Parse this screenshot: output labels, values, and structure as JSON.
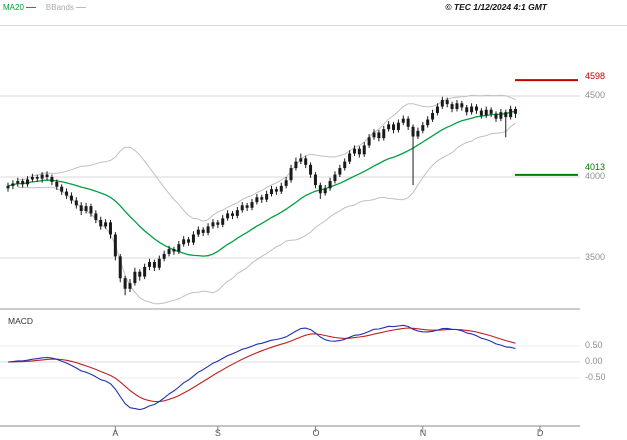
{
  "header": {
    "legend_ma": "MA20",
    "legend_bb": "BBands",
    "copyright": "© TEC 1/12/2024 4:1 GMT"
  },
  "colors": {
    "candle": "#1a1a1a",
    "ma20": "#00a040",
    "bbands": "#c0c0c0",
    "macd_line": "#2030b0",
    "macd_signal": "#c02020",
    "resistance": "#c00000",
    "support": "#008000",
    "grid": "#d8d8d8",
    "axis": "#888888",
    "tick_label": "#909090"
  },
  "chart_data": {
    "type": "candlestick",
    "title": "",
    "panels": [
      "price",
      "macd"
    ],
    "price_ticks": [
      {
        "label": "4500",
        "value": 4500
      },
      {
        "label": "4000",
        "value": 4000
      },
      {
        "label": "3500",
        "value": 3500
      }
    ],
    "levels": [
      {
        "label": "4598",
        "value": 4598,
        "kind": "resistance"
      },
      {
        "label": "4013",
        "value": 4013,
        "kind": "support"
      }
    ],
    "x_axis": {
      "months": [
        {
          "label": "A",
          "index": 22
        },
        {
          "label": "S",
          "index": 43
        },
        {
          "label": "O",
          "index": 63
        },
        {
          "label": "N",
          "index": 85
        },
        {
          "label": "D",
          "index": 109
        }
      ]
    },
    "overlays": {
      "ma_period": 20,
      "bb_period": 20,
      "bb_mult": 2
    },
    "macd_params": {
      "fast": 12,
      "slow": 26,
      "signal": 9,
      "scale": 100
    },
    "macd_axis": {
      "label": "MACD",
      "ticks": [
        {
          "label": "0.50",
          "value": 0.5
        },
        {
          "label": "0.00",
          "value": 0.0
        },
        {
          "label": "-0.50",
          "value": -0.5
        }
      ]
    },
    "ohlc": [
      [
        3930,
        3965,
        3910,
        3945
      ],
      [
        3945,
        3980,
        3925,
        3960
      ],
      [
        3960,
        3995,
        3940,
        3975
      ],
      [
        3975,
        3990,
        3935,
        3955
      ],
      [
        3955,
        4005,
        3940,
        3985
      ],
      [
        3985,
        4020,
        3970,
        4000
      ],
      [
        4000,
        4015,
        3970,
        3990
      ],
      [
        3990,
        4030,
        3965,
        4015
      ],
      [
        4015,
        4035,
        3980,
        4000
      ],
      [
        4000,
        4015,
        3950,
        3970
      ],
      [
        3970,
        3985,
        3920,
        3940
      ],
      [
        3940,
        3955,
        3890,
        3910
      ],
      [
        3910,
        3930,
        3865,
        3885
      ],
      [
        3885,
        3905,
        3835,
        3855
      ],
      [
        3855,
        3875,
        3805,
        3825
      ],
      [
        3825,
        3845,
        3765,
        3790
      ],
      [
        3790,
        3840,
        3775,
        3820
      ],
      [
        3820,
        3835,
        3755,
        3775
      ],
      [
        3775,
        3795,
        3715,
        3735
      ],
      [
        3735,
        3755,
        3675,
        3695
      ],
      [
        3695,
        3740,
        3680,
        3720
      ],
      [
        3720,
        3735,
        3620,
        3645
      ],
      [
        3645,
        3660,
        3485,
        3510
      ],
      [
        3510,
        3525,
        3350,
        3375
      ],
      [
        3375,
        3390,
        3270,
        3310
      ],
      [
        3310,
        3370,
        3290,
        3345
      ],
      [
        3345,
        3440,
        3330,
        3415
      ],
      [
        3415,
        3430,
        3360,
        3385
      ],
      [
        3385,
        3465,
        3370,
        3445
      ],
      [
        3445,
        3495,
        3425,
        3475
      ],
      [
        3475,
        3490,
        3420,
        3440
      ],
      [
        3440,
        3515,
        3425,
        3495
      ],
      [
        3495,
        3545,
        3480,
        3525
      ],
      [
        3525,
        3575,
        3510,
        3555
      ],
      [
        3555,
        3570,
        3520,
        3540
      ],
      [
        3540,
        3605,
        3525,
        3585
      ],
      [
        3585,
        3635,
        3570,
        3615
      ],
      [
        3615,
        3630,
        3575,
        3595
      ],
      [
        3595,
        3665,
        3580,
        3645
      ],
      [
        3645,
        3695,
        3630,
        3675
      ],
      [
        3675,
        3690,
        3635,
        3655
      ],
      [
        3655,
        3715,
        3640,
        3695
      ],
      [
        3695,
        3740,
        3680,
        3720
      ],
      [
        3720,
        3735,
        3685,
        3705
      ],
      [
        3705,
        3765,
        3690,
        3745
      ],
      [
        3745,
        3795,
        3730,
        3775
      ],
      [
        3775,
        3790,
        3740,
        3760
      ],
      [
        3760,
        3815,
        3745,
        3795
      ],
      [
        3795,
        3845,
        3780,
        3825
      ],
      [
        3825,
        3840,
        3790,
        3810
      ],
      [
        3810,
        3865,
        3795,
        3845
      ],
      [
        3845,
        3895,
        3830,
        3875
      ],
      [
        3875,
        3890,
        3840,
        3860
      ],
      [
        3860,
        3915,
        3845,
        3895
      ],
      [
        3895,
        3945,
        3880,
        3925
      ],
      [
        3925,
        3940,
        3890,
        3910
      ],
      [
        3910,
        3965,
        3895,
        3945
      ],
      [
        3945,
        4000,
        3930,
        3980
      ],
      [
        3980,
        4075,
        3965,
        4055
      ],
      [
        4055,
        4120,
        4040,
        4095
      ],
      [
        4095,
        4145,
        4080,
        4115
      ],
      [
        4115,
        4130,
        4055,
        4075
      ],
      [
        4075,
        4090,
        3995,
        4015
      ],
      [
        4015,
        4030,
        3930,
        3950
      ],
      [
        3950,
        3965,
        3865,
        3900
      ],
      [
        3900,
        3950,
        3885,
        3930
      ],
      [
        3930,
        3995,
        3915,
        3975
      ],
      [
        3975,
        4035,
        3960,
        4015
      ],
      [
        4015,
        4075,
        4000,
        4055
      ],
      [
        4055,
        4115,
        4040,
        4095
      ],
      [
        4095,
        4165,
        4080,
        4145
      ],
      [
        4145,
        4195,
        4130,
        4175
      ],
      [
        4175,
        4190,
        4120,
        4140
      ],
      [
        4140,
        4215,
        4125,
        4195
      ],
      [
        4195,
        4265,
        4180,
        4245
      ],
      [
        4245,
        4295,
        4230,
        4275
      ],
      [
        4275,
        4290,
        4220,
        4240
      ],
      [
        4240,
        4315,
        4225,
        4295
      ],
      [
        4295,
        4345,
        4280,
        4325
      ],
      [
        4325,
        4340,
        4270,
        4290
      ],
      [
        4290,
        4355,
        4275,
        4335
      ],
      [
        4335,
        4380,
        4320,
        4360
      ],
      [
        4360,
        4375,
        4290,
        4310
      ],
      [
        4310,
        4325,
        3950,
        4250
      ],
      [
        4250,
        4305,
        4235,
        4285
      ],
      [
        4285,
        4340,
        4270,
        4320
      ],
      [
        4320,
        4375,
        4305,
        4355
      ],
      [
        4355,
        4415,
        4340,
        4395
      ],
      [
        4395,
        4455,
        4380,
        4435
      ],
      [
        4435,
        4495,
        4420,
        4475
      ],
      [
        4475,
        4490,
        4430,
        4450
      ],
      [
        4450,
        4465,
        4400,
        4420
      ],
      [
        4420,
        4475,
        4405,
        4455
      ],
      [
        4455,
        4470,
        4410,
        4430
      ],
      [
        4430,
        4445,
        4380,
        4400
      ],
      [
        4400,
        4455,
        4385,
        4435
      ],
      [
        4435,
        4450,
        4390,
        4410
      ],
      [
        4410,
        4425,
        4360,
        4380
      ],
      [
        4380,
        4435,
        4365,
        4415
      ],
      [
        4415,
        4430,
        4370,
        4390
      ],
      [
        4390,
        4405,
        4340,
        4360
      ],
      [
        4360,
        4420,
        4345,
        4400
      ],
      [
        4400,
        4415,
        4245,
        4370
      ],
      [
        4370,
        4440,
        4355,
        4420
      ],
      [
        4420,
        4435,
        4365,
        4390
      ]
    ]
  }
}
